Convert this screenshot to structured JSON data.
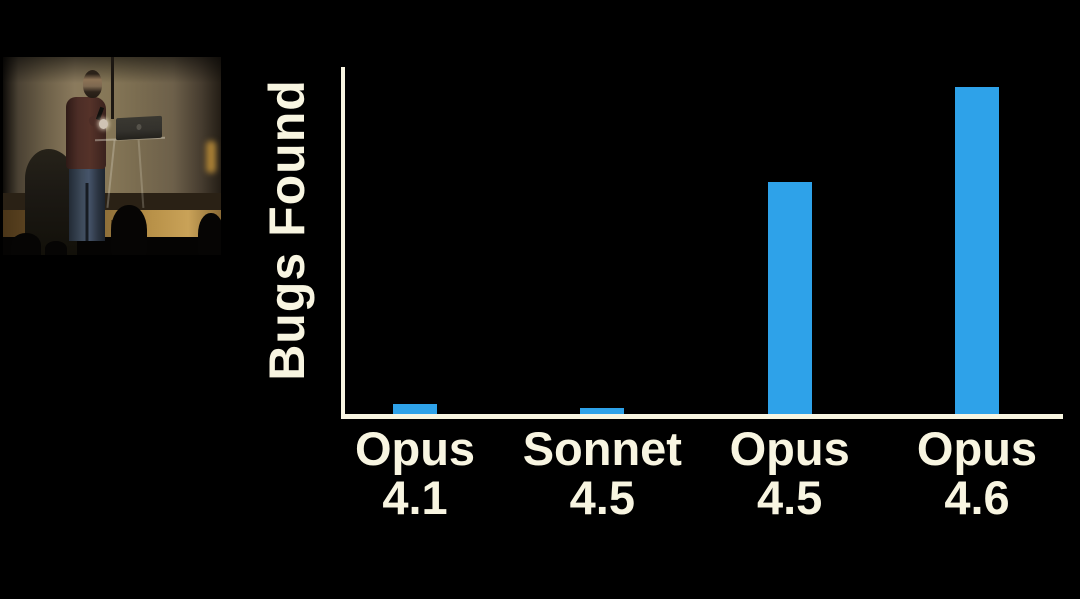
{
  "page": {
    "background": "#000000"
  },
  "video_inset": {
    "content": "speaker with beard and maroon sweater presenting on stage at a clear lectern with laptop, audience silhouettes in foreground",
    "wall_color": "#83755a",
    "marble_color": "#c9a258",
    "jeans_color": "#3d4a5a",
    "sweater_color": "#4c2d26"
  },
  "chart_data": {
    "type": "bar",
    "title": "",
    "xlabel": "",
    "ylabel": "Bugs Found",
    "categories": [
      "Opus 4.1",
      "Sonnet 4.5",
      "Opus 4.5",
      "Opus 4.6"
    ],
    "values": [
      3,
      2,
      71,
      100
    ],
    "value_note": "relative heights; no numeric axis shown in chart",
    "ylim": [
      0,
      106
    ],
    "grid": false,
    "legend": false,
    "bar_color": "#2ea2e9",
    "axis_color": "#f8f5e1",
    "label_color": "#f8f5e1",
    "background_color": "#000000"
  }
}
